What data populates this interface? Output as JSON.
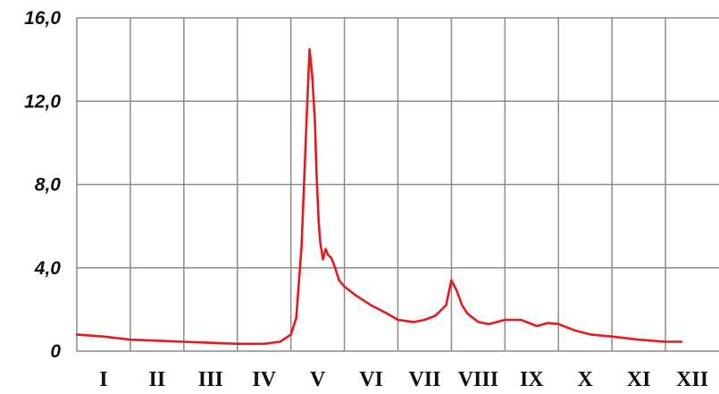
{
  "chart_data": {
    "type": "line",
    "title": "",
    "xlabel": "",
    "ylabel": "",
    "ylim": [
      0,
      16
    ],
    "ytick_labels": [
      "0",
      "4,0",
      "8,0",
      "12,0",
      "16,0"
    ],
    "ytick_values": [
      0,
      4,
      8,
      12,
      16
    ],
    "categories": [
      "I",
      "II",
      "III",
      "IV",
      "V",
      "VI",
      "VII",
      "VIII",
      "IX",
      "X",
      "XI",
      "XII"
    ],
    "grid": true,
    "legend": "none",
    "line_color": "#e8191c",
    "grid_color": "#8c8c8c",
    "series": [
      {
        "x": [
          1.0,
          1.5,
          2.0,
          2.5,
          3.0,
          3.5,
          4.0,
          4.5,
          4.8,
          5.0,
          5.1,
          5.2,
          5.3,
          5.35,
          5.4,
          5.45,
          5.48,
          5.52,
          5.55,
          5.6,
          5.65,
          5.7,
          5.75,
          5.8,
          5.85,
          5.9,
          6.0,
          6.2,
          6.5,
          6.8,
          7.0,
          7.3,
          7.5,
          7.7,
          7.9,
          8.0,
          8.1,
          8.2,
          8.3,
          8.4,
          8.5,
          8.7,
          9.0,
          9.3,
          9.6,
          9.8,
          10.0,
          10.3,
          10.6,
          11.0,
          11.5,
          12.0,
          12.3
        ],
        "y": [
          0.8,
          0.7,
          0.55,
          0.5,
          0.45,
          0.4,
          0.35,
          0.35,
          0.45,
          0.8,
          1.6,
          5.0,
          11.5,
          14.5,
          13.2,
          11.0,
          8.5,
          6.2,
          5.2,
          4.4,
          4.9,
          4.6,
          4.5,
          4.2,
          3.8,
          3.4,
          3.1,
          2.7,
          2.2,
          1.8,
          1.5,
          1.4,
          1.5,
          1.7,
          2.2,
          3.4,
          2.9,
          2.2,
          1.8,
          1.6,
          1.4,
          1.3,
          1.5,
          1.5,
          1.2,
          1.35,
          1.3,
          1.0,
          0.8,
          0.7,
          0.55,
          0.45,
          0.45
        ]
      }
    ]
  }
}
